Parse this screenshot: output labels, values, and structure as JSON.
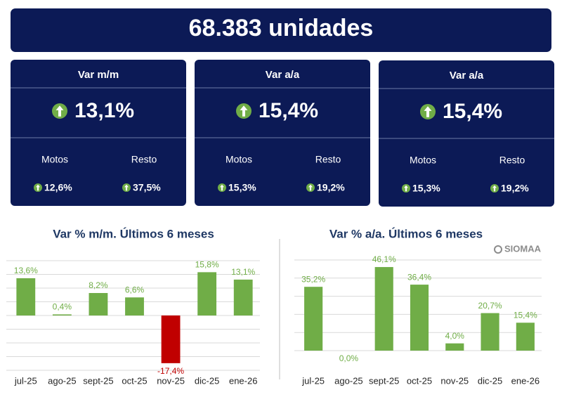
{
  "header": {
    "title": "68.383 unidades"
  },
  "cards": [
    {
      "title": "Var m/m",
      "value": "13,1%",
      "items": [
        {
          "label": "Motos",
          "value": "12,6%"
        },
        {
          "label": "Resto",
          "value": "37,5%"
        }
      ]
    },
    {
      "title": "Var a/a",
      "value": "15,4%",
      "items": [
        {
          "label": "Motos",
          "value": "15,3%"
        },
        {
          "label": "Resto",
          "value": "19,2%"
        }
      ]
    },
    {
      "title": "Var a/a",
      "value": "15,4%",
      "items": [
        {
          "label": "Motos",
          "value": "15,3%"
        },
        {
          "label": "Resto",
          "value": "19,2%"
        }
      ]
    }
  ],
  "logo": "SIOMAA",
  "chart_data": [
    {
      "type": "bar",
      "title": "Var % m/m. Últimos 6 meses",
      "categories": [
        "jul-25",
        "ago-25",
        "sept-25",
        "oct-25",
        "nov-25",
        "dic-25",
        "ene-26"
      ],
      "values": [
        13.6,
        0.4,
        8.2,
        6.6,
        -17.4,
        15.8,
        13.1
      ],
      "value_labels": [
        "13,6%",
        "0,4%",
        "8,2%",
        "6,6%",
        "-17,4%",
        "15,8%",
        "13,1%"
      ],
      "colors": [
        "#70ad47",
        "#70ad47",
        "#70ad47",
        "#70ad47",
        "#c00000",
        "#70ad47",
        "#70ad47"
      ],
      "ylim": [
        -20,
        20
      ],
      "yticks": [
        -20,
        -15,
        -10,
        -5,
        0,
        5,
        10,
        15,
        20
      ],
      "grid": true
    },
    {
      "type": "bar",
      "title": "Var % a/a. Últimos 6 meses",
      "categories": [
        "jul-25",
        "ago-25",
        "sept-25",
        "oct-25",
        "nov-25",
        "dic-25",
        "ene-26"
      ],
      "values": [
        35.2,
        0.0,
        46.1,
        36.4,
        4.0,
        20.7,
        15.4
      ],
      "value_labels": [
        "35,2%",
        "0,0%",
        "46,1%",
        "36,4%",
        "4,0%",
        "20,7%",
        "15,4%"
      ],
      "color": "#70ad47",
      "ylim": [
        0,
        50
      ],
      "yticks": [
        0,
        10,
        20,
        30,
        40,
        50
      ],
      "grid": true
    }
  ]
}
